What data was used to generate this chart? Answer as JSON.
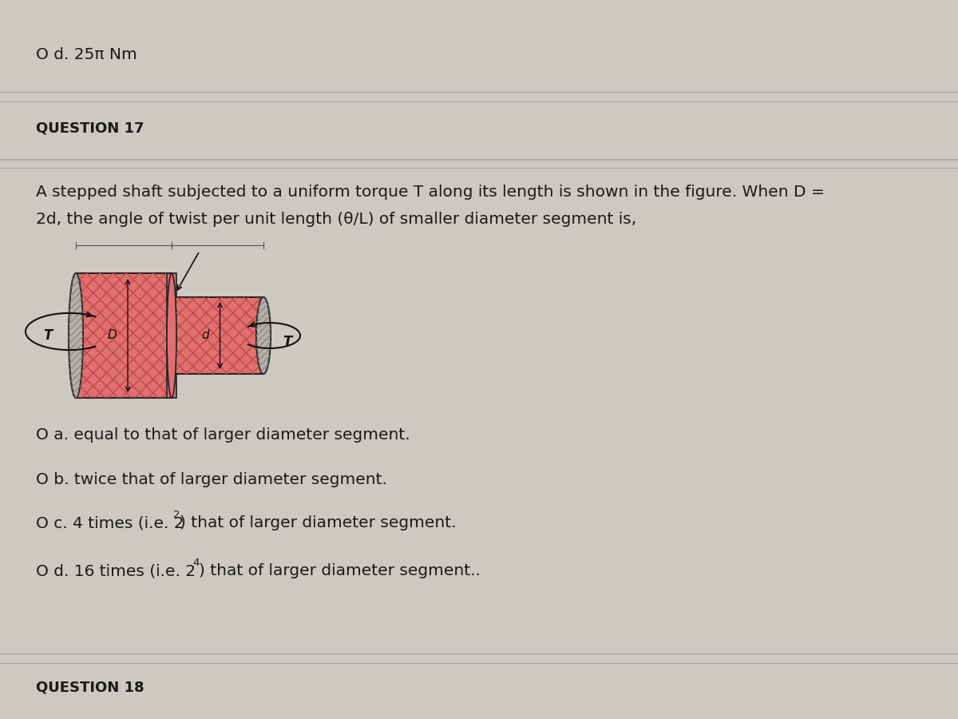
{
  "bg_color": "#ccc8c2",
  "text_color": "#1a1a1a",
  "top_option_text": "O d. 25π Nm",
  "q17_label": "QUESTION 17",
  "q17_body_line1": "A stepped shaft subjected to a uniform torque T along its length is shown in the figure. When D =",
  "q17_body_line2": "2d, the angle of twist per unit length (θ/L) of smaller diameter segment is,",
  "option_a": "O a. equal to that of larger diameter segment.",
  "option_b": "O b. twice that of larger diameter segment.",
  "option_c_prefix": "O c. 4 times (i.e. 2",
  "option_c_sup": "2",
  "option_c_suffix": ") that of larger diameter segment.",
  "option_d_prefix": "O d. 16 times (i.e. 2",
  "option_d_sup": "4",
  "option_d_suffix": ") that of larger diameter segment..",
  "q18_label": "QUESTION 18",
  "shaft_fill_color": "#e07070",
  "shaft_fill_color2": "#d46060",
  "sep_color": "#b04040",
  "sep_color2": "#888880",
  "body_fontsize": 14.5,
  "option_fontsize": 14.5,
  "q_label_fontsize": 13
}
